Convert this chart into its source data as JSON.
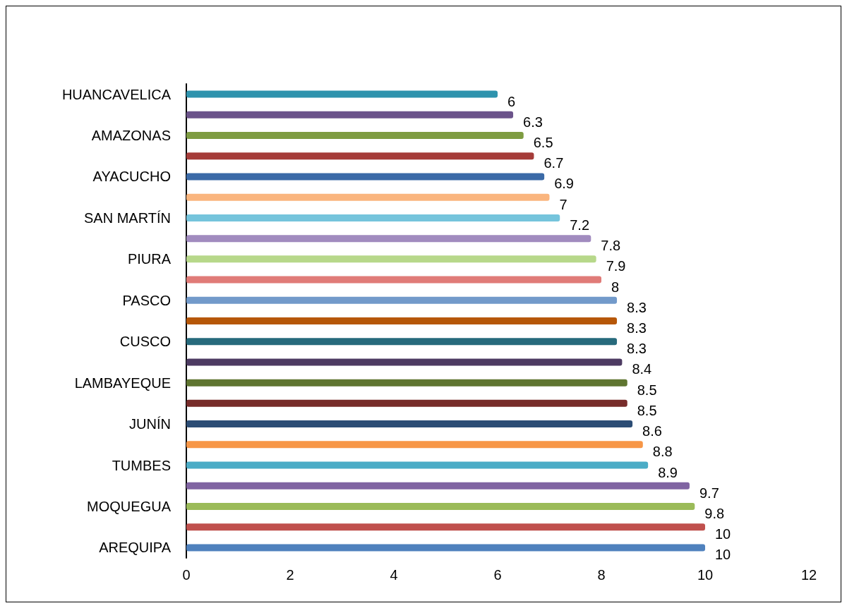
{
  "chart_data": {
    "type": "bar",
    "orientation": "horizontal",
    "categories": [
      "HUANCAVELICA",
      null,
      "AMAZONAS",
      null,
      "AYACUCHO",
      null,
      "SAN MARTÍN",
      null,
      "PIURA",
      null,
      "PASCO",
      null,
      "CUSCO",
      null,
      "LAMBAYEQUE",
      null,
      "JUNÍN",
      null,
      "TUMBES",
      null,
      "MOQUEGUA",
      null,
      "AREQUIPA"
    ],
    "values": [
      6,
      6.3,
      6.5,
      6.7,
      6.9,
      7,
      7.2,
      7.8,
      7.9,
      8,
      8.3,
      8.3,
      8.3,
      8.4,
      8.5,
      8.5,
      8.6,
      8.8,
      8.9,
      9.7,
      9.8,
      10,
      10
    ],
    "colors": [
      "#2e93ad",
      "#6b538a",
      "#7e9c41",
      "#a53c39",
      "#3b6aa7",
      "#fab57e",
      "#75c4dc",
      "#a18bbf",
      "#b7d88a",
      "#e07b78",
      "#729aca",
      "#b65708",
      "#276a7c",
      "#4d3b62",
      "#5f7530",
      "#772c2a",
      "#2c4d75",
      "#f79646",
      "#4bacc6",
      "#8064a2",
      "#9bbb59",
      "#c0504d",
      "#4f81bd"
    ],
    "xlim": [
      0,
      12
    ],
    "xticks": [
      0,
      2,
      4,
      6,
      8,
      10,
      12
    ],
    "grid": false,
    "data_labels": true
  }
}
